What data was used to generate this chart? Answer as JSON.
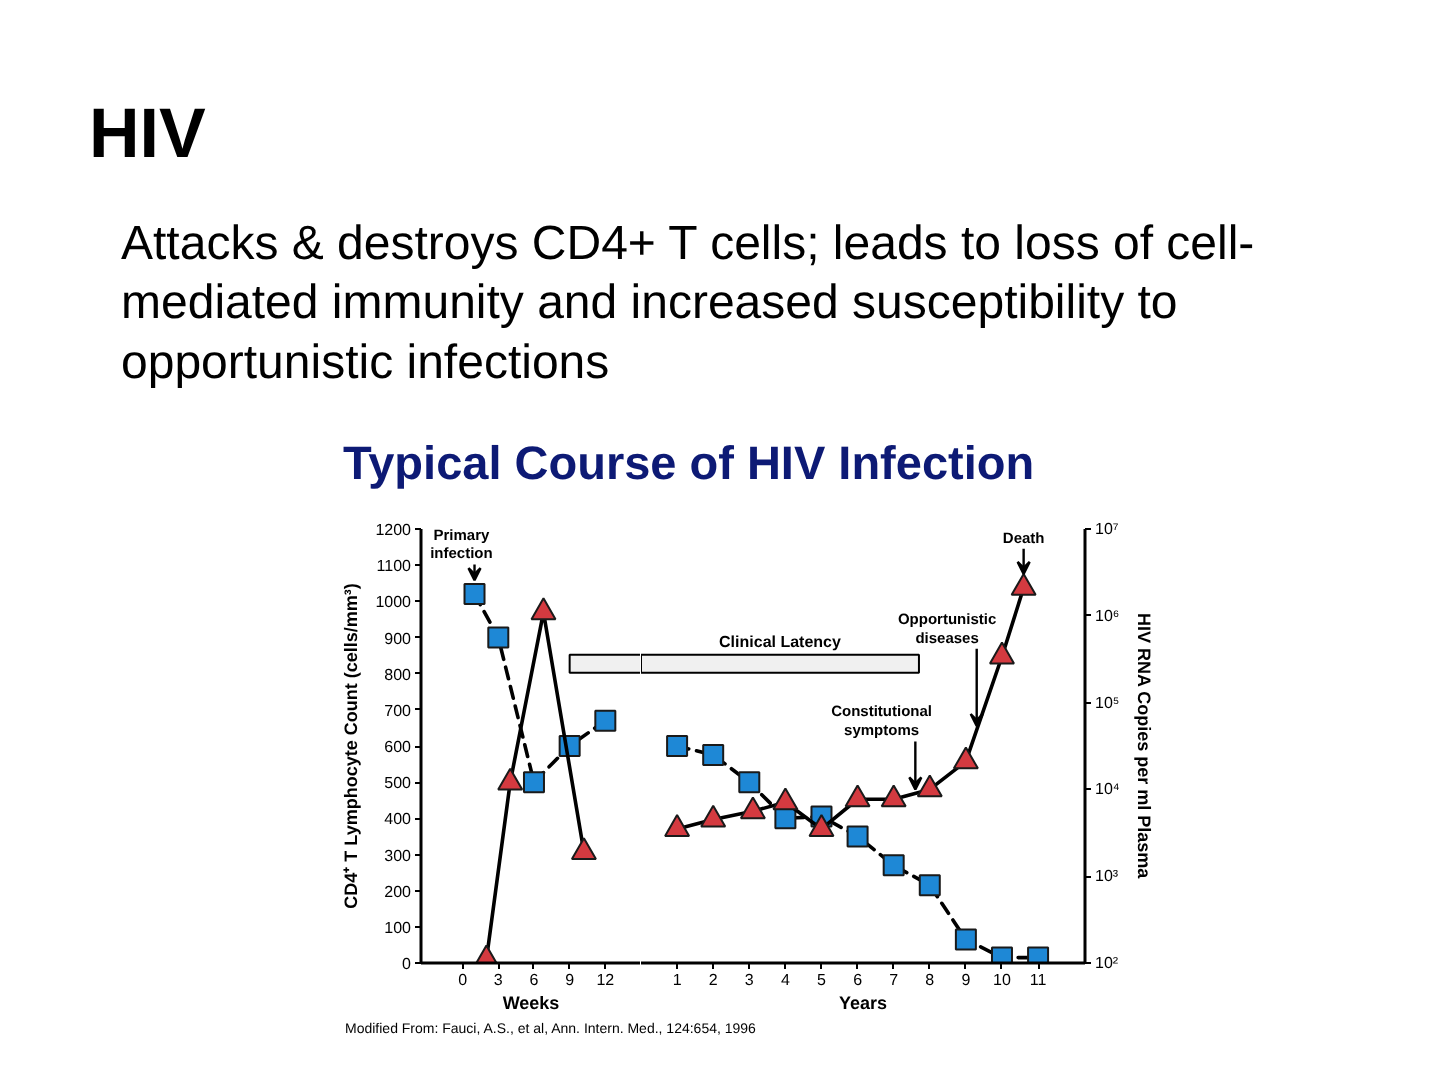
{
  "chart_data": [
    {
      "type": "line",
      "title": "HIV",
      "subtitle": "Attacks & destroys CD4+ T cells; leads to loss of cell-\nmediated immunity and increased susceptibility to\nopportunistic infections",
      "xlabel": "Weeks",
      "ylabel": "CD4⁺ T Lymphocyte Count (cells/mm³)",
      "xlim": [
        -3.5,
        15
      ],
      "xticks": [
        0,
        3,
        6,
        9,
        12
      ],
      "ylim": [
        0,
        1200
      ],
      "yticks": [
        0,
        100,
        200,
        300,
        400,
        500,
        600,
        700,
        800,
        900,
        1000,
        1100,
        1200
      ],
      "y2lim": [
        100,
        10000000
      ],
      "log": "y2",
      "grid": false,
      "series": [
        {
          "color": "#1e88d6",
          "marker": "square",
          "line_style": "dashed",
          "x": [
            1,
            3,
            6,
            9,
            12
          ],
          "values": [
            1020,
            900,
            500,
            600,
            670
          ]
        },
        {
          "color": "#d43a40",
          "marker": "triangle",
          "line_style": "solid",
          "axis": "y2",
          "x": [
            2,
            4,
            6.8,
            10.2
          ],
          "values": [
            110,
            12000,
            1100000,
            1900
          ]
        }
      ],
      "bands": [
        {
          "axis": "x",
          "from": 9,
          "to": 15,
          "color": "#f0f0f0"
        }
      ],
      "annotations": [
        "Typical Course of HIV Infection",
        {
          "text": "Primary\ninfection",
          "x": 1,
          "y": 1020
        }
      ]
    },
    {
      "type": "line",
      "xlabel": "Years",
      "y2label": "HIV RNA Copies per ml Plasma",
      "xlim": [
        0,
        12.3
      ],
      "xticks": [
        1,
        2,
        3,
        4,
        5,
        6,
        7,
        8,
        9,
        10,
        11
      ],
      "ylim": [
        0,
        1200
      ],
      "y2lim": [
        100,
        10000000
      ],
      "y2ticks": [
        {
          "value": 100,
          "label": "10²"
        },
        {
          "value": 1000,
          "label": "10³"
        },
        {
          "value": 10000,
          "label": "10⁴"
        },
        {
          "value": 100000,
          "label": "10⁵"
        },
        {
          "value": 1000000,
          "label": "10⁶"
        },
        {
          "value": 10000000,
          "label": "10⁷"
        }
      ],
      "log": "y2",
      "grid": false,
      "series": [
        {
          "color": "#1e88d6",
          "marker": "square",
          "line_style": "dashed",
          "x": [
            1,
            2,
            3,
            4,
            5,
            6,
            7,
            8,
            9,
            10,
            11
          ],
          "values": [
            600,
            575,
            500,
            400,
            405,
            350,
            270,
            215,
            65,
            15,
            15
          ]
        },
        {
          "color": "#d43a40",
          "marker": "triangle",
          "line_style": "solid",
          "axis": "y2",
          "x": [
            1,
            2,
            3.1,
            4,
            5,
            6,
            7,
            8,
            9,
            10,
            10.6
          ],
          "values": [
            3500,
            4500,
            5600,
            7100,
            3500,
            7700,
            7700,
            10000,
            21000,
            340000,
            2100000
          ]
        }
      ],
      "bands": [
        {
          "axis": "x",
          "from": 0,
          "to": 7.7,
          "label": "Clinical Latency",
          "color": "#f0f0f0"
        }
      ],
      "annotations": [
        {
          "text": "Death",
          "x": 10.6,
          "y": 1037
        },
        {
          "text": "Opportunistic\ndiseases",
          "x": 9.3,
          "y": 644
        },
        {
          "text": "Constitutional\nsymptoms",
          "x": 7.6,
          "y": 469
        },
        "Modified From: Fauci, A.S., et al, Ann. Intern. Med., 124:654, 1996"
      ]
    }
  ]
}
